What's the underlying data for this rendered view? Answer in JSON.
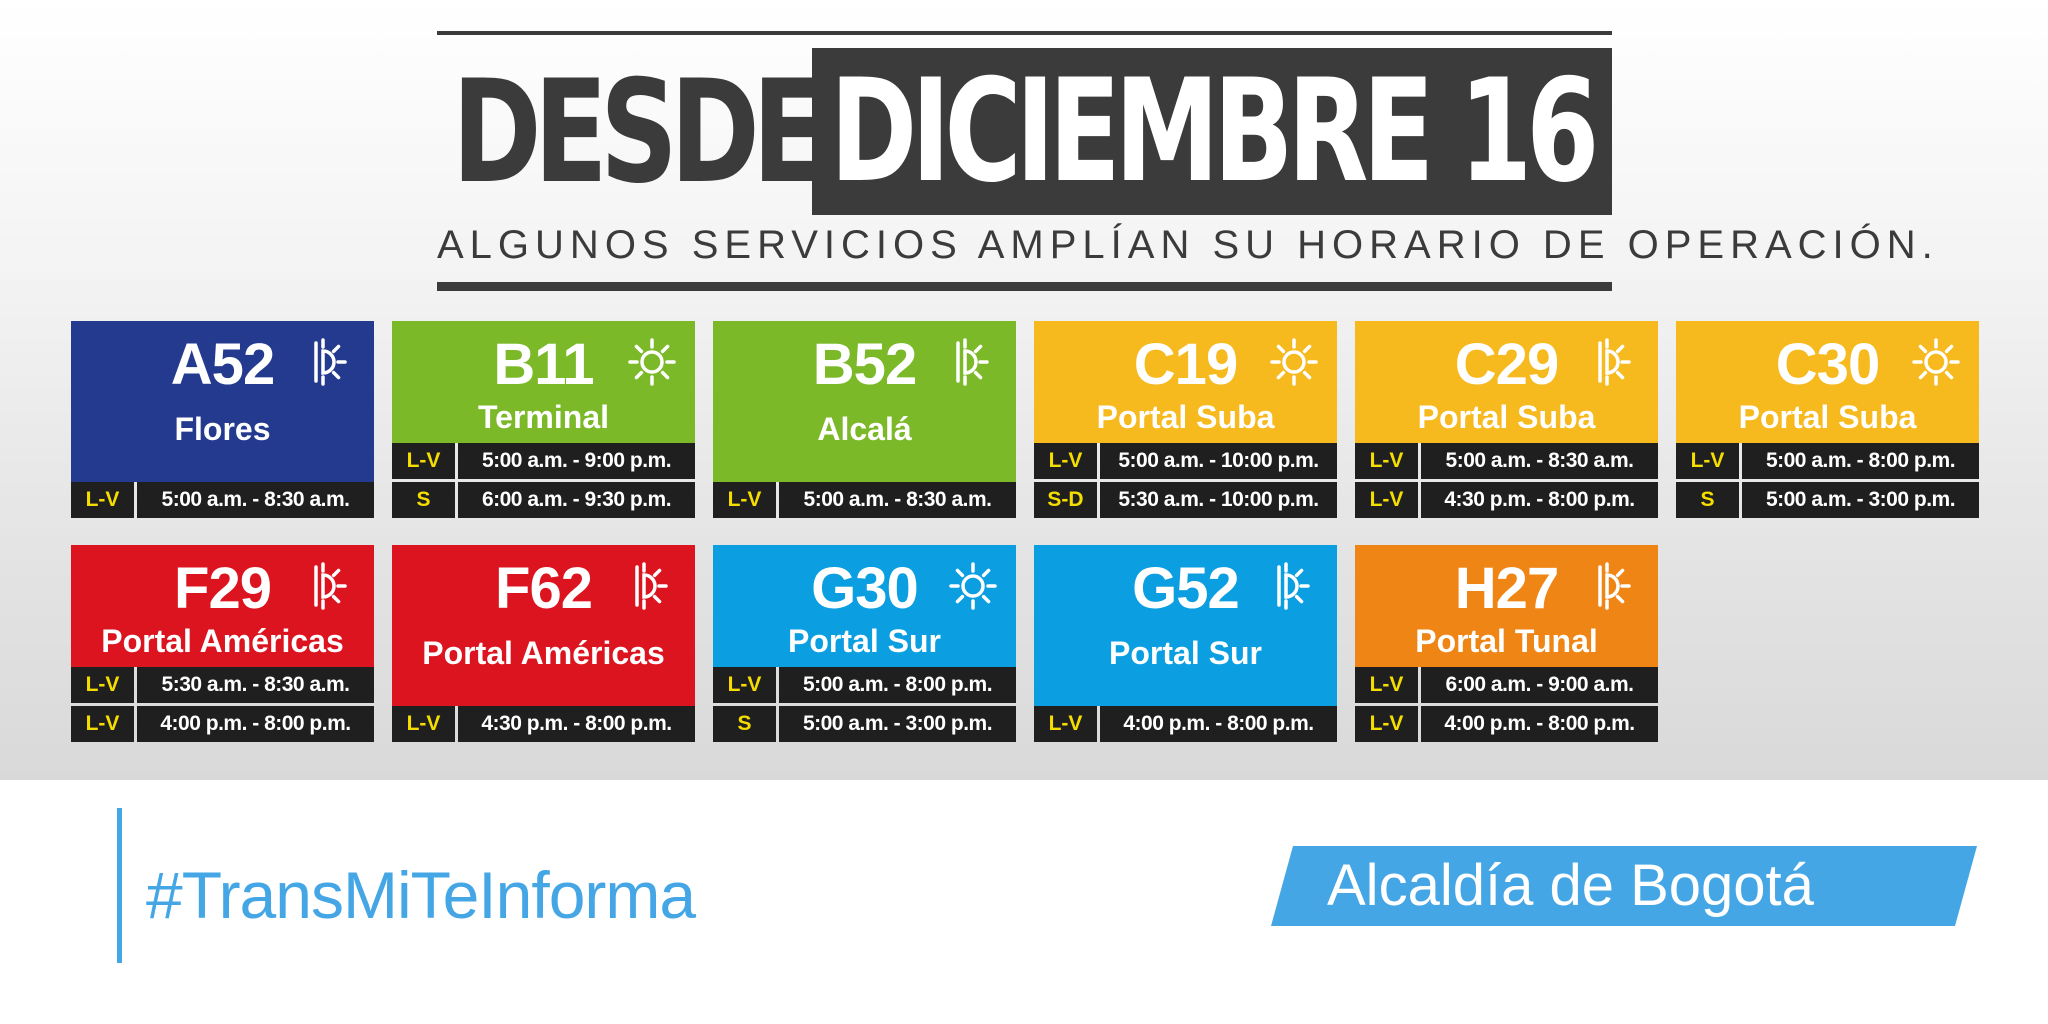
{
  "header": {
    "prefix": "DESDE",
    "date": "DICIEMBRE 16",
    "subtitle": "ALGUNOS SERVICIOS AMPLÍAN SU HORARIO DE OPERACIÓN."
  },
  "colors": {
    "blue_dark": "#233a8e",
    "green": "#7bb929",
    "yellow": "#f6b91e",
    "red": "#db1420",
    "blue": "#0b9ee0",
    "orange": "#ef8514",
    "dark": "#3b3b3b",
    "accent": "#45a6e6"
  },
  "routes": [
    {
      "code": "A52",
      "destination": "Flores",
      "color": "#233a8e",
      "icon": "half-sun-icon",
      "schedules": [
        {
          "days": "L-V",
          "time": "5:00 a.m. - 8:30 a.m."
        }
      ]
    },
    {
      "code": "B11",
      "destination": "Terminal",
      "color": "#7bb929",
      "icon": "sun-icon",
      "schedules": [
        {
          "days": "L-V",
          "time": "5:00 a.m. - 9:00 p.m."
        },
        {
          "days": "S",
          "time": "6:00 a.m. - 9:30 p.m."
        }
      ]
    },
    {
      "code": "B52",
      "destination": "Alcalá",
      "color": "#7bb929",
      "icon": "half-sun-icon",
      "schedules": [
        {
          "days": "L-V",
          "time": "5:00 a.m. - 8:30 a.m."
        }
      ]
    },
    {
      "code": "C19",
      "destination": "Portal Suba",
      "color": "#f6b91e",
      "icon": "sun-icon",
      "schedules": [
        {
          "days": "L-V",
          "time": "5:00 a.m. - 10:00 p.m."
        },
        {
          "days": "S-D",
          "time": "5:30 a.m. - 10:00 p.m."
        }
      ]
    },
    {
      "code": "C29",
      "destination": "Portal Suba",
      "color": "#f6b91e",
      "icon": "half-sun-icon",
      "schedules": [
        {
          "days": "L-V",
          "time": "5:00 a.m. - 8:30 a.m."
        },
        {
          "days": "L-V",
          "time": "4:30 p.m. - 8:00 p.m."
        }
      ]
    },
    {
      "code": "C30",
      "destination": "Portal Suba",
      "color": "#f6b91e",
      "icon": "sun-icon",
      "schedules": [
        {
          "days": "L-V",
          "time": "5:00 a.m. - 8:00 p.m."
        },
        {
          "days": "S",
          "time": "5:00 a.m. - 3:00 p.m."
        }
      ]
    },
    {
      "code": "F29",
      "destination": "Portal Américas",
      "color": "#db1420",
      "icon": "half-sun-icon",
      "schedules": [
        {
          "days": "L-V",
          "time": "5:30 a.m. - 8:30 a.m."
        },
        {
          "days": "L-V",
          "time": "4:00 p.m. - 8:00 p.m."
        }
      ]
    },
    {
      "code": "F62",
      "destination": "Portal Américas",
      "color": "#db1420",
      "icon": "half-sun-icon",
      "schedules": [
        {
          "days": "L-V",
          "time": "4:30 p.m. - 8:00 p.m."
        }
      ]
    },
    {
      "code": "G30",
      "destination": "Portal Sur",
      "color": "#0b9ee0",
      "icon": "sun-icon",
      "schedules": [
        {
          "days": "L-V",
          "time": "5:00 a.m. - 8:00 p.m."
        },
        {
          "days": "S",
          "time": "5:00 a.m. - 3:00 p.m."
        }
      ]
    },
    {
      "code": "G52",
      "destination": "Portal Sur",
      "color": "#0b9ee0",
      "icon": "half-sun-icon",
      "schedules": [
        {
          "days": "L-V",
          "time": "4:00 p.m. - 8:00 p.m."
        }
      ]
    },
    {
      "code": "H27",
      "destination": "Portal Tunal",
      "color": "#ef8514",
      "icon": "half-sun-icon",
      "schedules": [
        {
          "days": "L-V",
          "time": "6:00 a.m. - 9:00 a.m."
        },
        {
          "days": "L-V",
          "time": "4:00 p.m. - 8:00 p.m."
        }
      ]
    }
  ],
  "footer": {
    "hashtag": "#TransMiTeInforma",
    "logo_text": "Alcaldía de Bogotá"
  }
}
